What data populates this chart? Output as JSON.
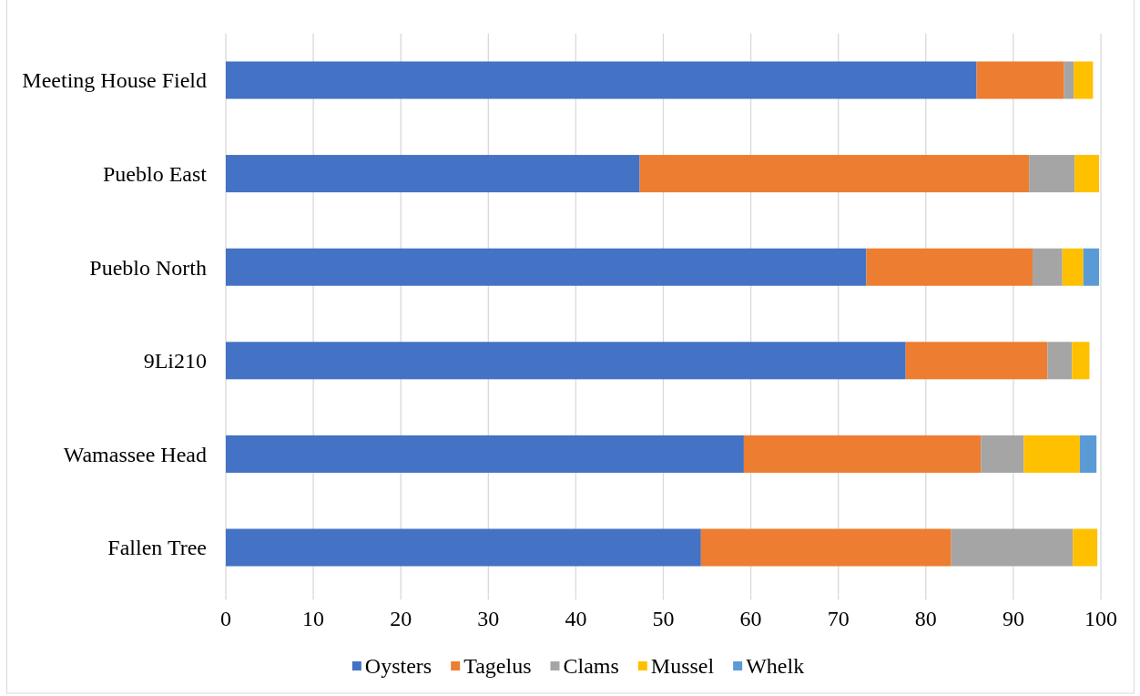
{
  "chart_data": {
    "type": "bar",
    "orientation": "horizontal",
    "stacked": true,
    "categories": [
      "Meeting House Field",
      "Pueblo East",
      "Pueblo North",
      "9Li210",
      "Wamassee Head",
      "Fallen Tree"
    ],
    "series": [
      {
        "name": "Oysters",
        "color": "#4472c4",
        "values": [
          85.8,
          47.3,
          73.2,
          77.7,
          59.2,
          54.3
        ]
      },
      {
        "name": "Tagelus",
        "color": "#ed7d31",
        "values": [
          10.0,
          44.5,
          19.0,
          16.2,
          27.1,
          28.6
        ]
      },
      {
        "name": "Clams",
        "color": "#a5a5a5",
        "values": [
          1.1,
          5.2,
          3.4,
          2.8,
          4.9,
          13.9
        ]
      },
      {
        "name": "Mussel",
        "color": "#ffc000",
        "values": [
          2.2,
          2.8,
          2.4,
          2.0,
          6.4,
          2.8
        ]
      },
      {
        "name": "Whelk",
        "color": "#5b9bd5",
        "values": [
          null,
          null,
          1.8,
          null,
          1.9,
          null
        ]
      }
    ],
    "xlim": [
      0,
      100
    ],
    "xticks": [
      0,
      10,
      20,
      30,
      40,
      50,
      60,
      70,
      80,
      90,
      100
    ],
    "grid": "x",
    "legend": "bottom"
  }
}
